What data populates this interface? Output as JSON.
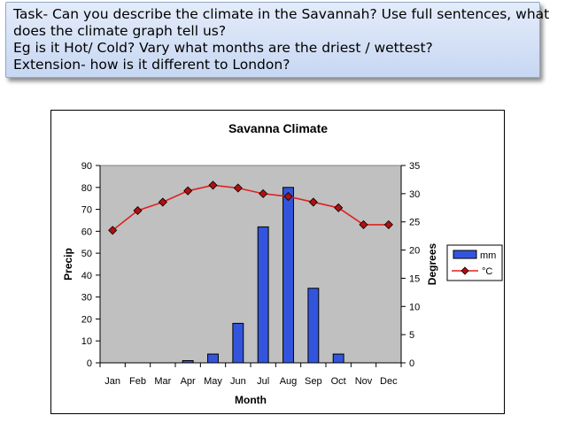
{
  "task": {
    "lines": [
      "Task- Can you describe the climate in the Savannah? Use full sentences, what",
      "does the climate graph tell us?",
      "Eg is it Hot/ Cold? Vary what months are the driest / wettest?",
      "Extension- how is it different to London?"
    ]
  },
  "chart_data": {
    "type": "bar",
    "title": "Savanna Climate",
    "xlabel": "Month",
    "ylabel": "Precip",
    "y2label": "Degrees",
    "categories": [
      "Jan",
      "Feb",
      "Mar",
      "Apr",
      "May",
      "Jun",
      "Jul",
      "Aug",
      "Sep",
      "Oct",
      "Nov",
      "Dec"
    ],
    "ylim": [
      0,
      90
    ],
    "yticks": [
      0,
      10,
      20,
      30,
      40,
      50,
      60,
      70,
      80,
      90
    ],
    "y2lim": [
      0,
      35
    ],
    "y2ticks": [
      0,
      5,
      10,
      15,
      20,
      25,
      30,
      35
    ],
    "grid": false,
    "legend_position": "right",
    "series": [
      {
        "name": "mm",
        "type": "bar",
        "axis": "left",
        "color": "#3355dd",
        "values": [
          0,
          0,
          0,
          1,
          4,
          18,
          62,
          80,
          34,
          4,
          0,
          0
        ]
      },
      {
        "name": "°C",
        "type": "line",
        "axis": "right",
        "color": "#dd2222",
        "marker": "diamond",
        "values": [
          23.5,
          27,
          28.5,
          30.5,
          31.5,
          31,
          30,
          29.5,
          28.5,
          27.5,
          24.5,
          24.5
        ]
      }
    ],
    "plot_background": "#c0c0c0"
  }
}
